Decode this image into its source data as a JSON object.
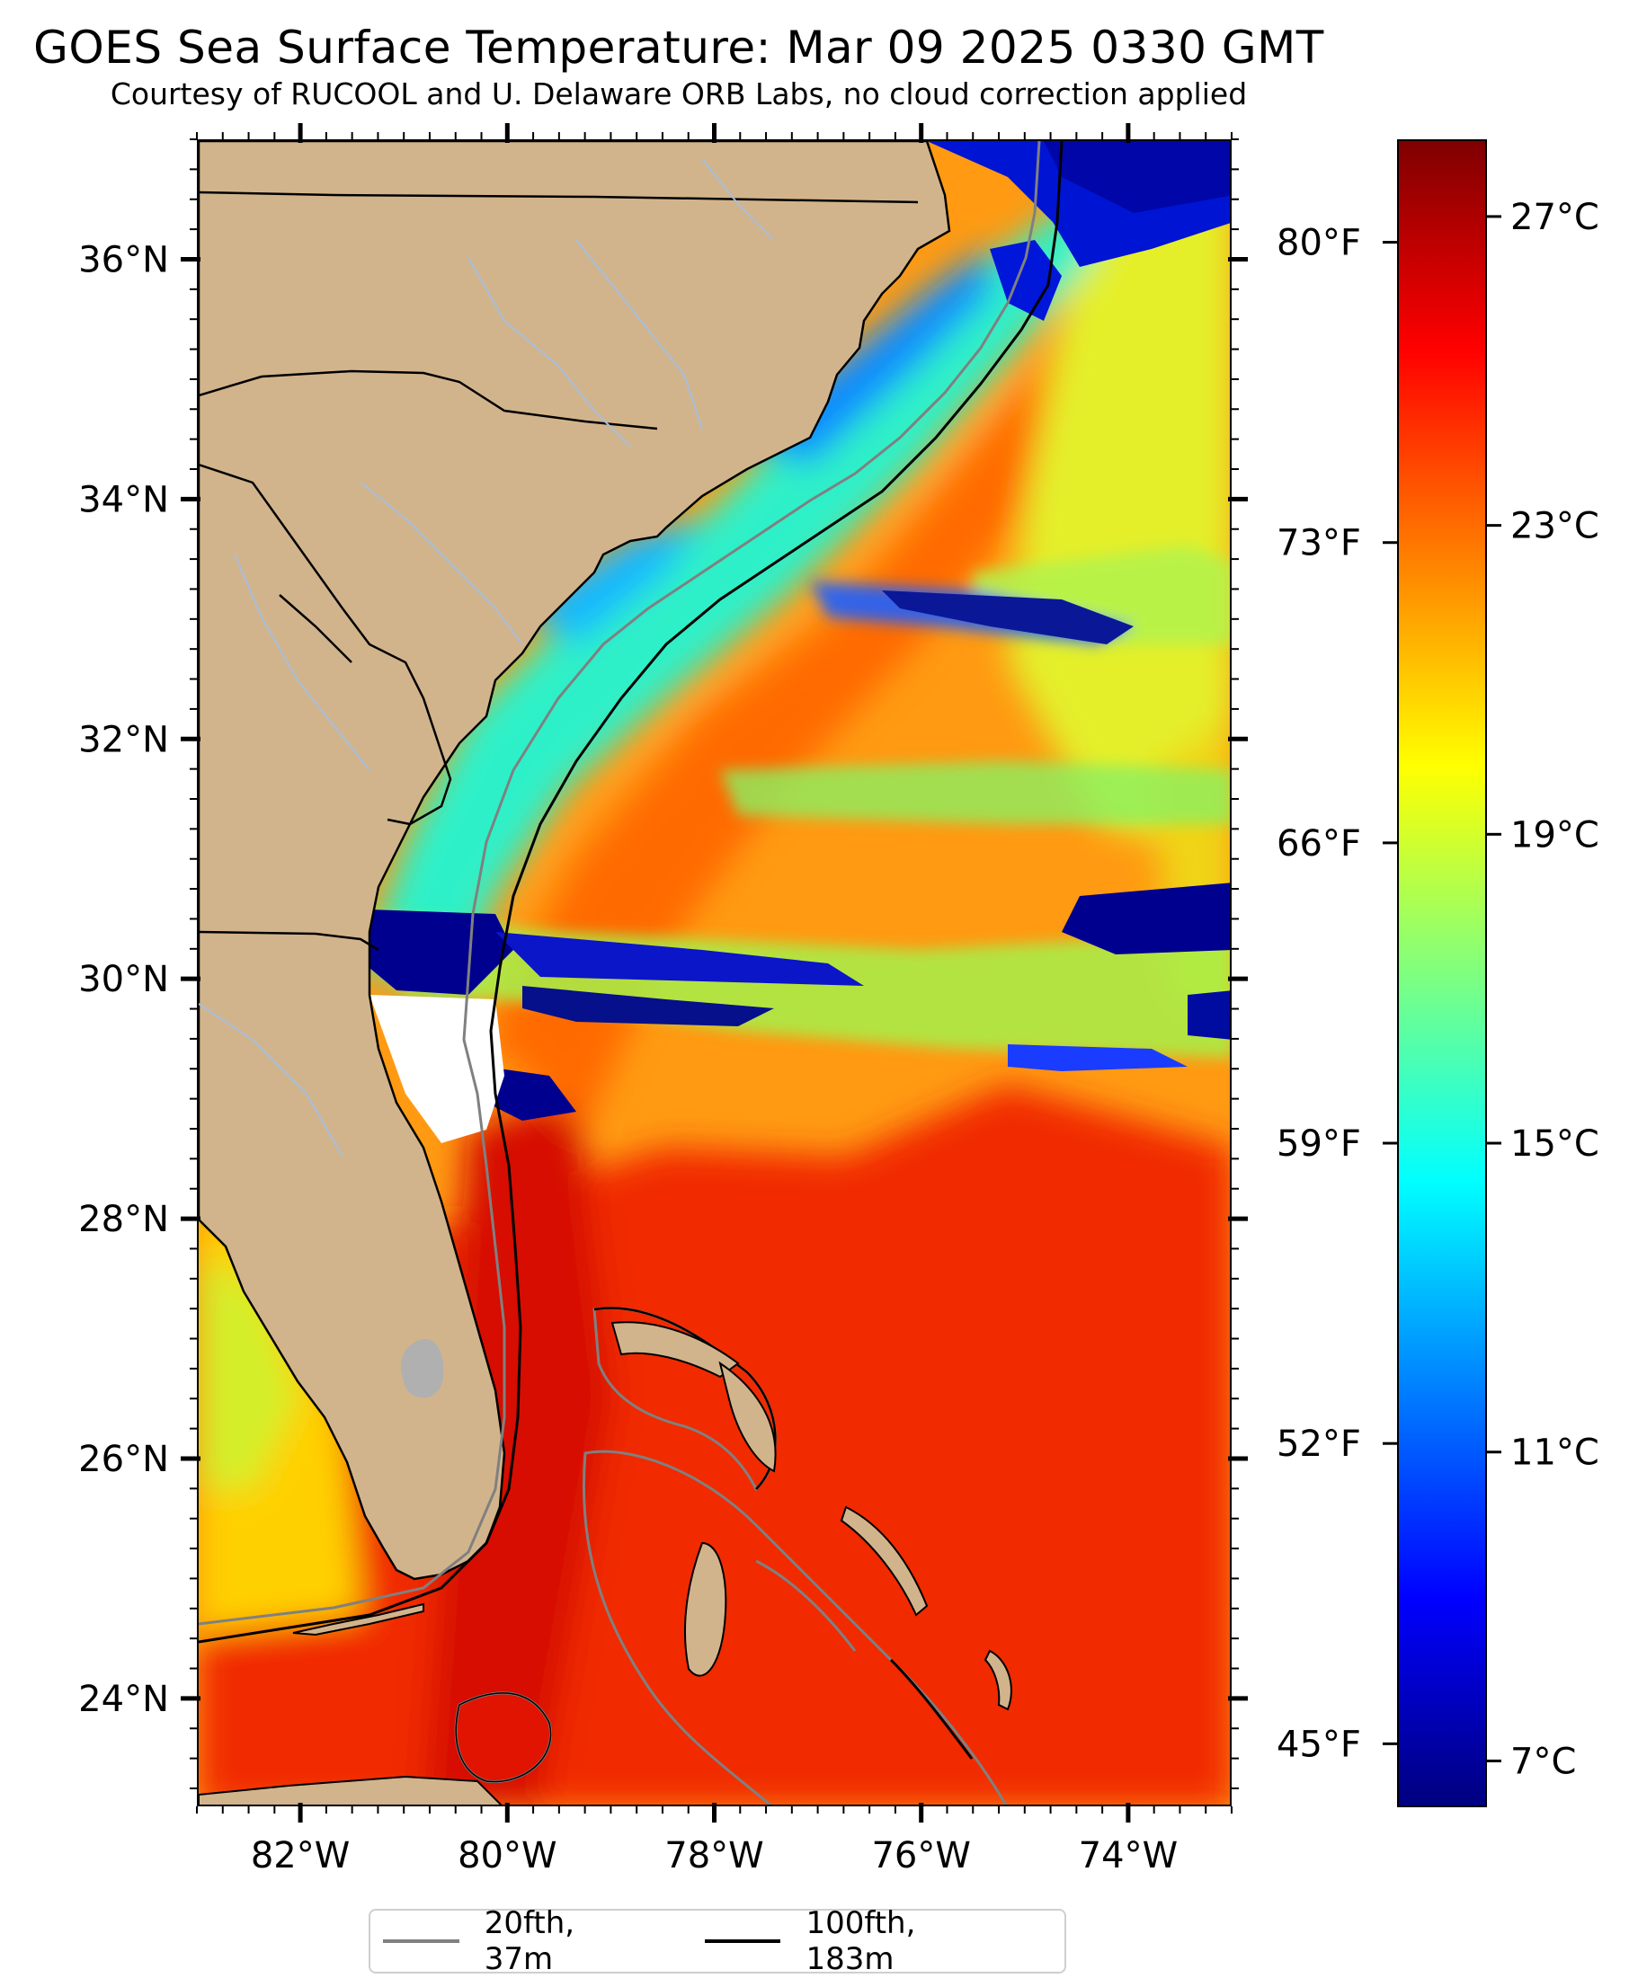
{
  "header": {
    "title": "GOES Sea Surface Temperature: Mar 09 2025 0330 GMT",
    "subtitle": "Courtesy of RUCOOL and U. Delaware ORB Labs, no cloud correction applied"
  },
  "map": {
    "lon_range": [
      -83,
      -73
    ],
    "lat_range": [
      23.1,
      37
    ],
    "lat_ticks": [
      {
        "value": 36,
        "label": "36°N"
      },
      {
        "value": 34,
        "label": "34°N"
      },
      {
        "value": 32,
        "label": "32°N"
      },
      {
        "value": 30,
        "label": "30°N"
      },
      {
        "value": 28,
        "label": "28°N"
      },
      {
        "value": 26,
        "label": "26°N"
      },
      {
        "value": 24,
        "label": "24°N"
      }
    ],
    "lon_ticks": [
      {
        "value": -82,
        "label": "82°W"
      },
      {
        "value": -80,
        "label": "80°W"
      },
      {
        "value": -78,
        "label": "78°W"
      },
      {
        "value": -76,
        "label": "76°W"
      },
      {
        "value": -74,
        "label": "74°W"
      }
    ],
    "fahrenheit_ticks": [
      {
        "value": 80,
        "label": "80°F"
      },
      {
        "value": 73,
        "label": "73°F"
      },
      {
        "value": 66,
        "label": "66°F"
      },
      {
        "value": 59,
        "label": "59°F"
      },
      {
        "value": 52,
        "label": "52°F"
      },
      {
        "value": 45,
        "label": "45°F"
      }
    ],
    "colors": {
      "land": "#d2b48c",
      "no_data": "#ffffff",
      "lake": "#b0b0b0",
      "river": "#a7bedb",
      "isobath_20": "#808080",
      "isobath_100": "#000000"
    }
  },
  "colorbar": {
    "range_c": [
      6.4,
      28.0
    ],
    "celsius_ticks": [
      {
        "value": 27,
        "label": "27°C"
      },
      {
        "value": 23,
        "label": "23°C"
      },
      {
        "value": 19,
        "label": "19°C"
      },
      {
        "value": 15,
        "label": "15°C"
      },
      {
        "value": 11,
        "label": "11°C"
      },
      {
        "value": 7,
        "label": "7°C"
      }
    ],
    "colormap": "jet",
    "stops": [
      "#00007f",
      "#0000ff",
      "#007fff",
      "#00ffff",
      "#7fff7f",
      "#ffff00",
      "#ff7f00",
      "#ff0000",
      "#7f0000"
    ]
  },
  "legend": {
    "items": [
      {
        "label": "20fth, 37m",
        "color": "#808080"
      },
      {
        "label": "100fth, 183m",
        "color": "#000000"
      }
    ]
  }
}
